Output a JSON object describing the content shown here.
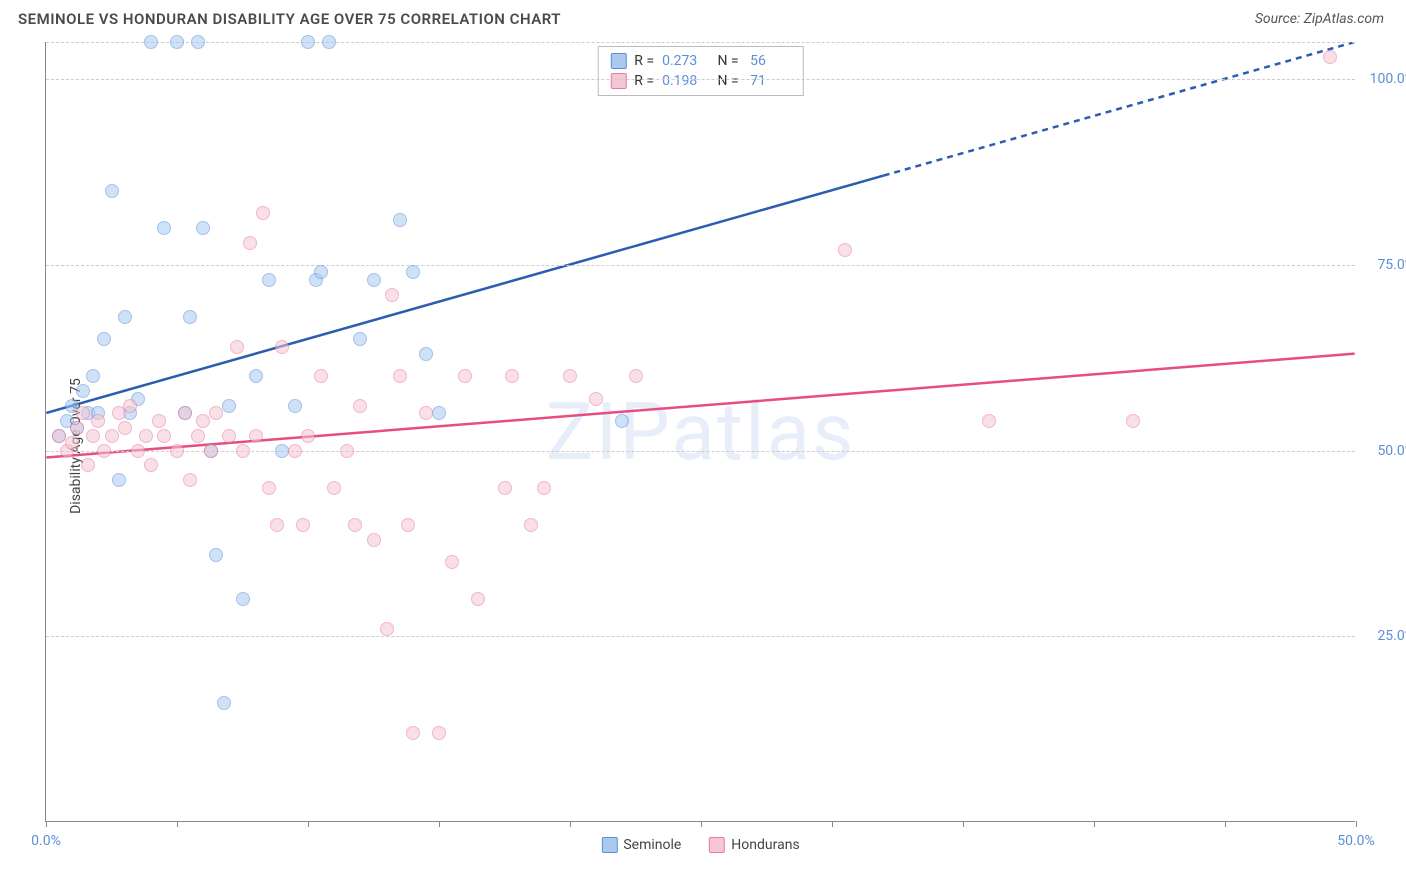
{
  "title": "SEMINOLE VS HONDURAN DISABILITY AGE OVER 75 CORRELATION CHART",
  "source": "Source: ZipAtlas.com",
  "watermark": "ZIPatlas",
  "ylabel": "Disability Age Over 75",
  "chart": {
    "type": "scatter",
    "xlim": [
      0,
      50
    ],
    "ylim": [
      0,
      105
    ],
    "x_ticks": [
      0,
      5,
      10,
      15,
      20,
      25,
      30,
      35,
      40,
      45,
      50
    ],
    "x_tick_labels": {
      "0": "0.0%",
      "50": "50.0%"
    },
    "y_gridlines": [
      25,
      50,
      75,
      100,
      105
    ],
    "y_tick_labels": {
      "25": "25.0%",
      "50": "50.0%",
      "75": "75.0%",
      "100": "100.0%"
    },
    "background_color": "#ffffff",
    "grid_color": "#cccccc",
    "axis_color": "#888888",
    "marker_radius": 7,
    "marker_opacity": 0.55,
    "series": [
      {
        "name": "Seminole",
        "fill_color": "#a9c9ef",
        "stroke_color": "#5b8fd9",
        "trend_color": "#2a5db0",
        "R": "0.273",
        "N": "56",
        "trend": {
          "x1": 0,
          "y1": 55,
          "x2": 50,
          "y2": 105,
          "solid_until_x": 32
        },
        "points": [
          [
            0.5,
            52
          ],
          [
            0.8,
            54
          ],
          [
            1.0,
            56
          ],
          [
            1.2,
            53
          ],
          [
            1.4,
            58
          ],
          [
            1.6,
            55
          ],
          [
            1.8,
            60
          ],
          [
            2.0,
            55
          ],
          [
            2.2,
            65
          ],
          [
            2.5,
            85
          ],
          [
            2.8,
            46
          ],
          [
            3.0,
            68
          ],
          [
            3.2,
            55
          ],
          [
            3.5,
            57
          ],
          [
            4.0,
            105
          ],
          [
            4.5,
            80
          ],
          [
            5.0,
            105
          ],
          [
            5.3,
            55
          ],
          [
            5.5,
            68
          ],
          [
            5.8,
            105
          ],
          [
            6.0,
            80
          ],
          [
            6.3,
            50
          ],
          [
            6.5,
            36
          ],
          [
            6.8,
            16
          ],
          [
            7.0,
            56
          ],
          [
            7.5,
            30
          ],
          [
            8.0,
            60
          ],
          [
            8.5,
            73
          ],
          [
            9.0,
            50
          ],
          [
            9.5,
            56
          ],
          [
            10.0,
            105
          ],
          [
            10.3,
            73
          ],
          [
            10.5,
            74
          ],
          [
            10.8,
            105
          ],
          [
            12.0,
            65
          ],
          [
            12.5,
            73
          ],
          [
            13.5,
            81
          ],
          [
            14.0,
            74
          ],
          [
            14.5,
            63
          ],
          [
            15.0,
            55
          ],
          [
            22.0,
            54
          ]
        ]
      },
      {
        "name": "Hondurans",
        "fill_color": "#f5c6d3",
        "stroke_color": "#e67ba0",
        "trend_color": "#e84d82",
        "R": "0.198",
        "N": "71",
        "trend": {
          "x1": 0,
          "y1": 49,
          "x2": 50,
          "y2": 63,
          "solid_until_x": 50
        },
        "points": [
          [
            0.5,
            52
          ],
          [
            0.8,
            50
          ],
          [
            1.0,
            51
          ],
          [
            1.2,
            53
          ],
          [
            1.4,
            55
          ],
          [
            1.6,
            48
          ],
          [
            1.8,
            52
          ],
          [
            2.0,
            54
          ],
          [
            2.2,
            50
          ],
          [
            2.5,
            52
          ],
          [
            2.8,
            55
          ],
          [
            3.0,
            53
          ],
          [
            3.2,
            56
          ],
          [
            3.5,
            50
          ],
          [
            3.8,
            52
          ],
          [
            4.0,
            48
          ],
          [
            4.3,
            54
          ],
          [
            4.5,
            52
          ],
          [
            5.0,
            50
          ],
          [
            5.3,
            55
          ],
          [
            5.5,
            46
          ],
          [
            5.8,
            52
          ],
          [
            6.0,
            54
          ],
          [
            6.3,
            50
          ],
          [
            6.5,
            55
          ],
          [
            7.0,
            52
          ],
          [
            7.3,
            64
          ],
          [
            7.5,
            50
          ],
          [
            7.8,
            78
          ],
          [
            8.0,
            52
          ],
          [
            8.3,
            82
          ],
          [
            8.5,
            45
          ],
          [
            8.8,
            40
          ],
          [
            9.0,
            64
          ],
          [
            9.5,
            50
          ],
          [
            9.8,
            40
          ],
          [
            10.0,
            52
          ],
          [
            10.5,
            60
          ],
          [
            11.0,
            45
          ],
          [
            11.5,
            50
          ],
          [
            11.8,
            40
          ],
          [
            12.0,
            56
          ],
          [
            12.5,
            38
          ],
          [
            13.0,
            26
          ],
          [
            13.2,
            71
          ],
          [
            13.5,
            60
          ],
          [
            13.8,
            40
          ],
          [
            14.0,
            12
          ],
          [
            14.5,
            55
          ],
          [
            15.0,
            12
          ],
          [
            15.5,
            35
          ],
          [
            16.0,
            60
          ],
          [
            16.5,
            30
          ],
          [
            17.5,
            45
          ],
          [
            17.8,
            60
          ],
          [
            18.5,
            40
          ],
          [
            19.0,
            45
          ],
          [
            20.0,
            60
          ],
          [
            21.0,
            57
          ],
          [
            22.5,
            60
          ],
          [
            30.5,
            77
          ],
          [
            36.0,
            54
          ],
          [
            41.5,
            54
          ],
          [
            49.0,
            103
          ]
        ]
      }
    ]
  },
  "legend_bottom": [
    {
      "label": "Seminole",
      "fill": "#a9c9ef",
      "stroke": "#5b8fd9"
    },
    {
      "label": "Hondurans",
      "fill": "#f5c6d3",
      "stroke": "#e67ba0"
    }
  ]
}
